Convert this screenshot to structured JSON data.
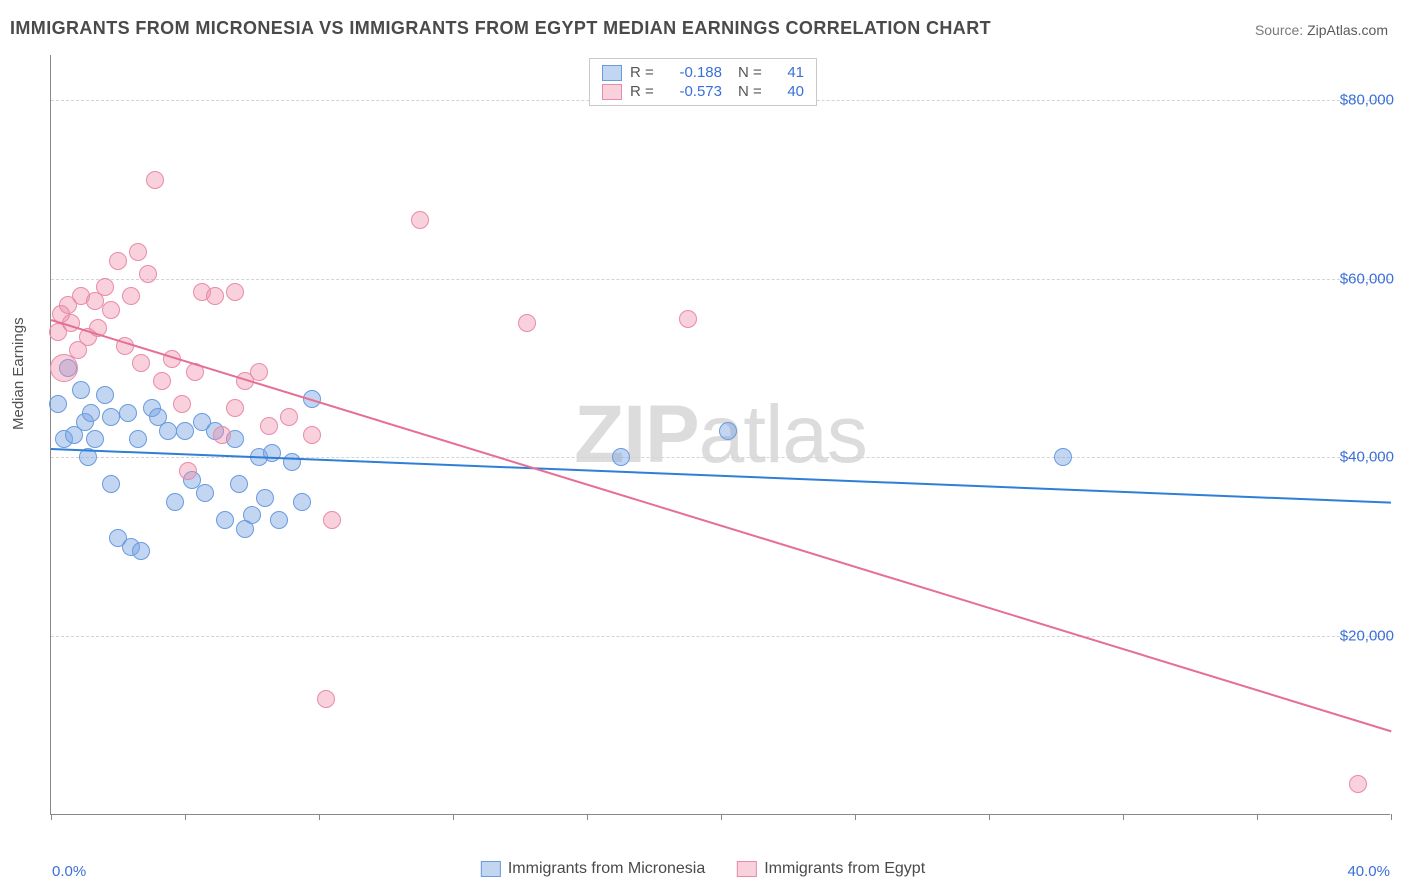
{
  "title": "IMMIGRANTS FROM MICRONESIA VS IMMIGRANTS FROM EGYPT MEDIAN EARNINGS CORRELATION CHART",
  "source_prefix": "Source: ",
  "source_name": "ZipAtlas.com",
  "watermark_bold": "ZIP",
  "watermark_rest": "atlas",
  "ylabel": "Median Earnings",
  "chart": {
    "type": "scatter",
    "xlim": [
      0,
      40
    ],
    "ylim": [
      0,
      85000
    ],
    "x_tick_positions": [
      0,
      4,
      8,
      12,
      16,
      20,
      24,
      28,
      32,
      36,
      40
    ],
    "x_label_min": "0.0%",
    "x_label_max": "40.0%",
    "y_ticks": [
      {
        "v": 20000,
        "label": "$20,000"
      },
      {
        "v": 40000,
        "label": "$40,000"
      },
      {
        "v": 60000,
        "label": "$60,000"
      },
      {
        "v": 80000,
        "label": "$80,000"
      }
    ],
    "background_color": "#ffffff",
    "grid_color": "#d4d4d4",
    "axis_color": "#888888",
    "tick_label_color": "#3a6fd8",
    "marker_radius": 8,
    "marker_border_width": 1,
    "series": [
      {
        "name": "Immigrants from Micronesia",
        "fill": "rgba(120,165,226,0.45)",
        "stroke": "#6a9ae0",
        "line_color": "#2f7ed8",
        "R": "-0.188",
        "N": "41",
        "trend": {
          "x1": 0,
          "y1": 41000,
          "x2": 40,
          "y2": 35000
        },
        "points": [
          {
            "x": 0.2,
            "y": 46000
          },
          {
            "x": 0.4,
            "y": 42000
          },
          {
            "x": 0.5,
            "y": 50000
          },
          {
            "x": 0.7,
            "y": 42500
          },
          {
            "x": 0.9,
            "y": 47500
          },
          {
            "x": 1.0,
            "y": 44000
          },
          {
            "x": 1.1,
            "y": 40000
          },
          {
            "x": 1.2,
            "y": 45000
          },
          {
            "x": 1.3,
            "y": 42000
          },
          {
            "x": 1.6,
            "y": 47000
          },
          {
            "x": 1.8,
            "y": 44500
          },
          {
            "x": 1.8,
            "y": 37000
          },
          {
            "x": 2.0,
            "y": 31000
          },
          {
            "x": 2.3,
            "y": 45000
          },
          {
            "x": 2.4,
            "y": 30000
          },
          {
            "x": 2.6,
            "y": 42000
          },
          {
            "x": 2.7,
            "y": 29500
          },
          {
            "x": 3.0,
            "y": 45500
          },
          {
            "x": 3.2,
            "y": 44500
          },
          {
            "x": 3.5,
            "y": 43000
          },
          {
            "x": 3.7,
            "y": 35000
          },
          {
            "x": 4.0,
            "y": 43000
          },
          {
            "x": 4.2,
            "y": 37500
          },
          {
            "x": 4.5,
            "y": 44000
          },
          {
            "x": 4.6,
            "y": 36000
          },
          {
            "x": 4.9,
            "y": 43000
          },
          {
            "x": 5.2,
            "y": 33000
          },
          {
            "x": 5.5,
            "y": 42000
          },
          {
            "x": 5.6,
            "y": 37000
          },
          {
            "x": 5.8,
            "y": 32000
          },
          {
            "x": 6.0,
            "y": 33500
          },
          {
            "x": 6.2,
            "y": 40000
          },
          {
            "x": 6.4,
            "y": 35500
          },
          {
            "x": 6.6,
            "y": 40500
          },
          {
            "x": 6.8,
            "y": 33000
          },
          {
            "x": 7.2,
            "y": 39500
          },
          {
            "x": 7.5,
            "y": 35000
          },
          {
            "x": 7.8,
            "y": 46500
          },
          {
            "x": 17.0,
            "y": 40000
          },
          {
            "x": 20.2,
            "y": 43000
          },
          {
            "x": 30.2,
            "y": 40000
          }
        ]
      },
      {
        "name": "Immigrants from Egypt",
        "fill": "rgba(238,140,168,0.40)",
        "stroke": "#e98aac",
        "line_color": "#e56f95",
        "R": "-0.573",
        "N": "40",
        "trend": {
          "x1": 0,
          "y1": 55500,
          "x2": 40,
          "y2": 9500
        },
        "points": [
          {
            "x": 0.2,
            "y": 54000
          },
          {
            "x": 0.3,
            "y": 56000
          },
          {
            "x": 0.4,
            "y": 50000,
            "r": 13
          },
          {
            "x": 0.5,
            "y": 57000
          },
          {
            "x": 0.6,
            "y": 55000
          },
          {
            "x": 0.8,
            "y": 52000
          },
          {
            "x": 0.9,
            "y": 58000
          },
          {
            "x": 1.1,
            "y": 53500
          },
          {
            "x": 1.3,
            "y": 57500
          },
          {
            "x": 1.4,
            "y": 54500
          },
          {
            "x": 1.6,
            "y": 59000
          },
          {
            "x": 1.8,
            "y": 56500
          },
          {
            "x": 2.0,
            "y": 62000
          },
          {
            "x": 2.2,
            "y": 52500
          },
          {
            "x": 2.4,
            "y": 58000
          },
          {
            "x": 2.6,
            "y": 63000
          },
          {
            "x": 2.7,
            "y": 50500
          },
          {
            "x": 2.9,
            "y": 60500
          },
          {
            "x": 3.1,
            "y": 71000
          },
          {
            "x": 3.3,
            "y": 48500
          },
          {
            "x": 3.6,
            "y": 51000
          },
          {
            "x": 3.9,
            "y": 46000
          },
          {
            "x": 4.1,
            "y": 38500
          },
          {
            "x": 4.3,
            "y": 49500
          },
          {
            "x": 4.5,
            "y": 58500
          },
          {
            "x": 4.9,
            "y": 58000
          },
          {
            "x": 5.1,
            "y": 42500
          },
          {
            "x": 5.5,
            "y": 58500
          },
          {
            "x": 5.5,
            "y": 45500
          },
          {
            "x": 5.8,
            "y": 48500
          },
          {
            "x": 6.2,
            "y": 49500
          },
          {
            "x": 6.5,
            "y": 43500
          },
          {
            "x": 7.1,
            "y": 44500
          },
          {
            "x": 7.8,
            "y": 42500
          },
          {
            "x": 8.4,
            "y": 33000
          },
          {
            "x": 8.2,
            "y": 13000
          },
          {
            "x": 11.0,
            "y": 66500
          },
          {
            "x": 14.2,
            "y": 55000
          },
          {
            "x": 19.0,
            "y": 55500
          },
          {
            "x": 39.0,
            "y": 3500
          }
        ]
      }
    ]
  },
  "legend_top": {
    "R_label": "R  =",
    "N_label": "N  ="
  },
  "legend_bottom_items": [
    {
      "key": 0
    },
    {
      "key": 1
    }
  ]
}
